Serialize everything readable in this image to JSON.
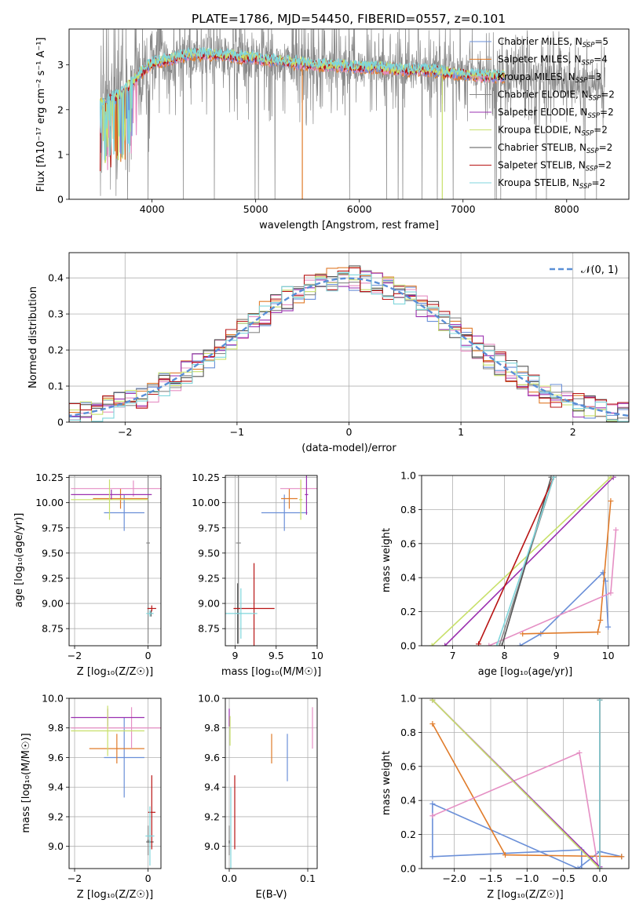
{
  "figure": {
    "title": "PLATE=1786, MJD=54450, FIBERID=0557, z=0.101"
  },
  "colors": {
    "Chabrier MILES": "#6a8fd8",
    "Salpeter MILES": "#e07b2a",
    "Kroupa MILES": "#e58fc4",
    "Chabrier ELODIE": "#888888",
    "Salpeter ELODIE": "#9b30b0",
    "Kroupa ELODIE": "#c8e06a",
    "Chabrier STELIB": "#555555",
    "Salpeter STELIB": "#b81414",
    "Kroupa STELIB": "#7fd6dc",
    "normal": "#5a8fd6",
    "grid": "#b0b0b0"
  },
  "legend_fits": [
    {
      "key": "Chabrier MILES",
      "label": "Chabrier MILES, N",
      "sub": "SSP",
      "tail": "=5"
    },
    {
      "key": "Salpeter MILES",
      "label": "Salpeter MILES, N",
      "sub": "SSP",
      "tail": "=4"
    },
    {
      "key": "Kroupa MILES",
      "label": "Kroupa MILES, N",
      "sub": "SSP",
      "tail": "=3"
    },
    {
      "key": "Chabrier ELODIE",
      "label": "Chabrier ELODIE, N",
      "sub": "SSP",
      "tail": "=2"
    },
    {
      "key": "Salpeter ELODIE",
      "label": "Salpeter ELODIE, N",
      "sub": "SSP",
      "tail": "=2"
    },
    {
      "key": "Kroupa ELODIE",
      "label": "Kroupa ELODIE, N",
      "sub": "SSP",
      "tail": "=2"
    },
    {
      "key": "Chabrier STELIB",
      "label": "Chabrier STELIB, N",
      "sub": "SSP",
      "tail": "=2"
    },
    {
      "key": "Salpeter STELIB",
      "label": "Salpeter STELIB, N",
      "sub": "SSP",
      "tail": "=2"
    },
    {
      "key": "Kroupa STELIB",
      "label": "Kroupa STELIB, N",
      "sub": "SSP",
      "tail": "=2"
    }
  ],
  "chart_data": [
    {
      "id": "spectrum",
      "type": "line",
      "xlabel": "wavelength [Angstrom, rest frame]",
      "ylabel": "Flux [fλ10⁻¹⁷ erg cm⁻² s⁻¹ A⁻¹]",
      "xlim": [
        3200,
        8600
      ],
      "ylim": [
        0,
        3.8
      ],
      "xticks": [
        4000,
        5000,
        6000,
        7000,
        8000
      ],
      "yticks": [
        0,
        1,
        2,
        3
      ],
      "legend_position": "upper right",
      "data_range": {
        "x_start": 3500,
        "x_end": 8370,
        "model_end": 7400
      },
      "continuum": [
        [
          3500,
          2.15
        ],
        [
          3600,
          2.25
        ],
        [
          3700,
          2.35
        ],
        [
          3800,
          2.6
        ],
        [
          3900,
          2.85
        ],
        [
          4000,
          3.05
        ],
        [
          4200,
          3.15
        ],
        [
          4400,
          3.25
        ],
        [
          4600,
          3.25
        ],
        [
          4800,
          3.2
        ],
        [
          5000,
          3.15
        ],
        [
          5200,
          3.1
        ],
        [
          5400,
          3.05
        ],
        [
          5600,
          3.0
        ],
        [
          5800,
          3.0
        ],
        [
          6000,
          2.95
        ],
        [
          6200,
          2.95
        ],
        [
          6400,
          2.9
        ],
        [
          6600,
          2.9
        ],
        [
          6800,
          2.85
        ],
        [
          7000,
          2.8
        ],
        [
          7200,
          2.75
        ],
        [
          7400,
          2.75
        ],
        [
          7600,
          2.7
        ],
        [
          7800,
          2.7
        ],
        [
          8000,
          2.65
        ],
        [
          8200,
          2.6
        ],
        [
          8370,
          2.6
        ]
      ],
      "notes_absorption": [
        {
          "x": 5450,
          "series": "Salpeter MILES"
        },
        {
          "x": 6800,
          "series": "Kroupa ELODIE"
        }
      ]
    },
    {
      "id": "residuals",
      "type": "histogram",
      "xlabel": "(data-model)/error",
      "ylabel": "Normed distribution",
      "xlim": [
        -2.5,
        2.5
      ],
      "ylim": [
        0,
        0.47
      ],
      "xticks": [
        -2,
        -1,
        0,
        1,
        2
      ],
      "yticks": [
        0,
        0.1,
        0.2,
        0.3,
        0.4
      ],
      "grid": true,
      "legend_position": "upper right",
      "normal_label": "𝒩(0, 1)",
      "bin_width": 0.1
    },
    {
      "id": "age_vs_Z",
      "type": "scatter",
      "xlabel": "Z [log₁₀(Z/Z☉)]",
      "ylabel": "age  [log₁₀(age/yr)]",
      "xlim": [
        -2.15,
        0.35
      ],
      "ylim": [
        8.58,
        10.27
      ],
      "xticks": [
        -2,
        0
      ],
      "yticks": [
        8.75,
        9.0,
        9.25,
        9.5,
        9.75,
        10.0,
        10.25
      ],
      "ytick_labels": [
        "8.75",
        "9.00",
        "9.25",
        "9.50",
        "9.75",
        "10.00",
        "10.25"
      ],
      "grid": true,
      "points": [
        {
          "series": "Chabrier MILES",
          "x": -0.65,
          "y": 9.9,
          "xerr": 0.55,
          "yerr": 0.18
        },
        {
          "series": "Salpeter MILES",
          "x": -0.75,
          "y": 10.04,
          "xerr": 0.75,
          "yerr": 0.1
        },
        {
          "series": "Kroupa MILES",
          "x": -0.4,
          "y": 10.14,
          "xerr": 1.7,
          "yerr": 0.08
        },
        {
          "series": "Chabrier ELODIE",
          "x": 0.0,
          "y": 9.6,
          "xerr": 0.05,
          "yerr": 1.0
        },
        {
          "series": "Salpeter ELODIE",
          "x": -1.0,
          "y": 10.08,
          "xerr": 1.1,
          "yerr": 0.05
        },
        {
          "series": "Kroupa ELODIE",
          "x": -1.05,
          "y": 10.03,
          "xerr": 1.05,
          "yerr": 0.2
        },
        {
          "series": "Chabrier STELIB",
          "x": 0.08,
          "y": 8.9,
          "xerr": 0.05,
          "yerr": 0.03
        },
        {
          "series": "Salpeter STELIB",
          "x": 0.1,
          "y": 8.95,
          "xerr": 0.12,
          "yerr": 0.03
        },
        {
          "series": "Kroupa STELIB",
          "x": 0.05,
          "y": 8.9,
          "xerr": 0.1,
          "yerr": 0.03
        }
      ]
    },
    {
      "id": "age_vs_mass",
      "type": "scatter",
      "xlabel": "mass [log₁₀(M/M☉)]",
      "ylabel": "",
      "xlim": [
        8.88,
        10.0
      ],
      "ylim": [
        8.58,
        10.27
      ],
      "xticks": [
        9.0,
        9.5,
        10.0
      ],
      "yticks": [
        8.75,
        9.0,
        9.25,
        9.5,
        9.75,
        10.0,
        10.25
      ],
      "ytick_labels": [
        "8.75",
        "9.00",
        "9.25",
        "9.50",
        "9.75",
        "10.00",
        "10.25"
      ],
      "grid": true,
      "points": [
        {
          "series": "Chabrier MILES",
          "x": 9.6,
          "y": 9.9,
          "xerr": 0.28,
          "yerr": 0.18
        },
        {
          "series": "Salpeter MILES",
          "x": 9.66,
          "y": 10.04,
          "xerr": 0.1,
          "yerr": 0.1
        },
        {
          "series": "Kroupa MILES",
          "x": 9.8,
          "y": 10.14,
          "xerr": 0.25,
          "yerr": 0.08
        },
        {
          "series": "Chabrier ELODIE",
          "x": 9.04,
          "y": 9.6,
          "xerr": 0.03,
          "yerr": 1.0
        },
        {
          "series": "Salpeter ELODIE",
          "x": 9.87,
          "y": 10.08,
          "xerr": 0.02,
          "yerr": 0.2
        },
        {
          "series": "Kroupa ELODIE",
          "x": 9.8,
          "y": 10.03,
          "xerr": 0.02,
          "yerr": 0.2
        },
        {
          "series": "Chabrier STELIB",
          "x": 9.03,
          "y": 8.9,
          "xerr": 0.02,
          "yerr": 0.3
        },
        {
          "series": "Salpeter STELIB",
          "x": 9.23,
          "y": 8.95,
          "xerr": 0.25,
          "yerr": 0.45
        },
        {
          "series": "Kroupa STELIB",
          "x": 9.07,
          "y": 8.9,
          "xerr": 0.2,
          "yerr": 0.25
        }
      ]
    },
    {
      "id": "cumul_mass_weight_vs_age",
      "type": "line",
      "xlabel": "age  [log₁₀(age/yr)]",
      "ylabel": "mass weight",
      "xlim": [
        6.4,
        10.4
      ],
      "ylim": [
        0,
        1
      ],
      "xticks": [
        7,
        8,
        9,
        10
      ],
      "yticks": [
        0,
        0.2,
        0.4,
        0.6,
        0.8,
        1.0
      ],
      "ytick_labels": [
        "0.0",
        "0.2",
        "0.4",
        "0.6",
        "0.8",
        "1.0"
      ],
      "grid": true,
      "series": [
        {
          "key": "Chabrier MILES",
          "x": [
            8.3,
            8.7,
            9.9,
            9.95,
            10.0
          ],
          "y": [
            0.0,
            0.07,
            0.43,
            0.38,
            0.11
          ]
        },
        {
          "key": "Salpeter MILES",
          "x": [
            8.35,
            9.8,
            9.85,
            10.05
          ],
          "y": [
            0.07,
            0.08,
            0.15,
            0.85
          ]
        },
        {
          "key": "Kroupa MILES",
          "x": [
            7.7,
            10.05,
            10.15
          ],
          "y": [
            0.0,
            0.31,
            0.68
          ]
        },
        {
          "key": "Chabrier ELODIE",
          "x": [
            7.9,
            8.95
          ],
          "y": [
            0.0,
            0.99
          ]
        },
        {
          "key": "Salpeter ELODIE",
          "x": [
            6.85,
            10.1
          ],
          "y": [
            0.0,
            0.99
          ]
        },
        {
          "key": "Kroupa ELODIE",
          "x": [
            6.6,
            10.05
          ],
          "y": [
            0.0,
            0.99
          ]
        },
        {
          "key": "Chabrier STELIB",
          "x": [
            7.95,
            8.9
          ],
          "y": [
            0.0,
            0.99
          ]
        },
        {
          "key": "Salpeter STELIB",
          "x": [
            7.5,
            8.95
          ],
          "y": [
            0.01,
            0.99
          ]
        },
        {
          "key": "Kroupa STELIB",
          "x": [
            7.85,
            8.95
          ],
          "y": [
            0.0,
            0.99
          ]
        }
      ]
    },
    {
      "id": "mass_vs_Z",
      "type": "scatter",
      "xlabel": "Z [log₁₀(Z/Z☉)]",
      "ylabel": "mass [log₁₀(M/M☉)]",
      "xlim": [
        -2.15,
        0.35
      ],
      "ylim": [
        8.85,
        10.0
      ],
      "xticks": [
        -2,
        0
      ],
      "yticks": [
        9.0,
        9.2,
        9.4,
        9.6,
        9.8,
        10.0
      ],
      "ytick_labels": [
        "9.0",
        "9.2",
        "9.4",
        "9.6",
        "9.8",
        "10.0"
      ],
      "grid": true,
      "points": [
        {
          "series": "Chabrier MILES",
          "x": -0.65,
          "y": 9.6,
          "xerr": 0.55,
          "yerr": 0.27
        },
        {
          "series": "Salpeter MILES",
          "x": -0.85,
          "y": 9.66,
          "xerr": 0.75,
          "yerr": 0.1
        },
        {
          "series": "Kroupa MILES",
          "x": -0.45,
          "y": 9.8,
          "xerr": 1.65,
          "yerr": 0.14
        },
        {
          "series": "Chabrier ELODIE",
          "x": 0.0,
          "y": 9.04,
          "xerr": 0.03,
          "yerr": 0.1
        },
        {
          "series": "Salpeter ELODIE",
          "x": -1.1,
          "y": 9.87,
          "xerr": 1.0,
          "yerr": 0.06
        },
        {
          "series": "Kroupa ELODIE",
          "x": -1.1,
          "y": 9.78,
          "xerr": 1.0,
          "yerr": 0.17
        },
        {
          "series": "Chabrier STELIB",
          "x": 0.05,
          "y": 9.03,
          "xerr": 0.1,
          "yerr": 0.01
        },
        {
          "series": "Salpeter STELIB",
          "x": 0.1,
          "y": 9.23,
          "xerr": 0.1,
          "yerr": 0.25
        },
        {
          "series": "Kroupa STELIB",
          "x": 0.05,
          "y": 9.07,
          "xerr": 0.12,
          "yerr": 0.2
        }
      ]
    },
    {
      "id": "mass_vs_EBV",
      "type": "scatter",
      "xlabel": "E(B-V)",
      "ylabel": "",
      "xlim": [
        -0.005,
        0.112
      ],
      "ylim": [
        8.85,
        10.0
      ],
      "xticks": [
        0.0,
        0.1
      ],
      "xtick_labels": [
        "0.0",
        "0.1"
      ],
      "yticks": [
        9.0,
        9.2,
        9.4,
        9.6,
        9.8,
        10.0
      ],
      "ytick_labels": [
        "9.0",
        "9.2",
        "9.4",
        "9.6",
        "9.8",
        "10.0"
      ],
      "grid": true,
      "points": [
        {
          "series": "Chabrier MILES",
          "x": 0.074,
          "y": 9.6,
          "xerr": 0,
          "yerr": 0.16
        },
        {
          "series": "Salpeter MILES",
          "x": 0.054,
          "y": 9.66,
          "xerr": 0,
          "yerr": 0.1
        },
        {
          "series": "Kroupa MILES",
          "x": 0.106,
          "y": 9.8,
          "xerr": 0,
          "yerr": 0.14
        },
        {
          "series": "Chabrier ELODIE",
          "x": 0.0,
          "y": 9.04,
          "xerr": 0,
          "yerr": 0.1
        },
        {
          "series": "Salpeter ELODIE",
          "x": 0.0,
          "y": 9.87,
          "xerr": 0,
          "yerr": 0.06
        },
        {
          "series": "Kroupa ELODIE",
          "x": 0.001,
          "y": 9.78,
          "xerr": 0,
          "yerr": 0.1
        },
        {
          "series": "Chabrier STELIB",
          "x": 0.0,
          "y": 9.03,
          "xerr": 0,
          "yerr": 0.01
        },
        {
          "series": "Salpeter STELIB",
          "x": 0.007,
          "y": 9.23,
          "xerr": 0,
          "yerr": 0.25
        },
        {
          "series": "Kroupa STELIB",
          "x": 0.002,
          "y": 9.1,
          "xerr": 0,
          "yerr": 0.3
        }
      ]
    },
    {
      "id": "cumul_mass_weight_vs_Z",
      "type": "line",
      "xlabel": "Z [log₁₀(Z/Z☉)]",
      "ylabel": "mass weight",
      "xlim": [
        -2.45,
        0.4
      ],
      "ylim": [
        0,
        1
      ],
      "xticks": [
        -2.0,
        -1.5,
        -1.0,
        -0.5,
        0.0
      ],
      "xtick_labels": [
        "−2.0",
        "−1.5",
        "−1.0",
        "−0.5",
        "0.0"
      ],
      "yticks": [
        0,
        0.2,
        0.4,
        0.6,
        0.8,
        1.0
      ],
      "ytick_labels": [
        "0.0",
        "0.2",
        "0.4",
        "0.6",
        "0.8",
        "1.0"
      ],
      "grid": true,
      "series": [
        {
          "key": "Chabrier MILES",
          "x": [
            -0.25,
            -0.25,
            -2.3,
            -2.3,
            -0.3,
            0.0,
            0.3
          ],
          "y": [
            0.0,
            0.11,
            0.07,
            0.38,
            0.0,
            0.1,
            0.07
          ]
        },
        {
          "key": "Salpeter MILES",
          "x": [
            0.3,
            -1.3,
            -2.3
          ],
          "y": [
            0.07,
            0.08,
            0.85
          ]
        },
        {
          "key": "Kroupa MILES",
          "x": [
            -0.02,
            -0.28,
            -2.3
          ],
          "y": [
            0.0,
            0.68,
            0.31
          ]
        },
        {
          "key": "Chabrier ELODIE",
          "x": [
            0.0,
            -2.3
          ],
          "y": [
            0.0,
            0.99
          ]
        },
        {
          "key": "Salpeter ELODIE",
          "x": [
            0.0,
            -2.3
          ],
          "y": [
            0.01,
            0.99
          ]
        },
        {
          "key": "Kroupa ELODIE",
          "x": [
            0.0,
            -2.3
          ],
          "y": [
            0.0,
            0.99
          ]
        },
        {
          "key": "Chabrier STELIB",
          "x": [
            0.0,
            0.0
          ],
          "y": [
            0.0,
            0.99
          ]
        },
        {
          "key": "Salpeter STELIB",
          "x": [
            0.0,
            0.0
          ],
          "y": [
            0.0,
            0.99
          ]
        },
        {
          "key": "Kroupa STELIB",
          "x": [
            0.0,
            0.0
          ],
          "y": [
            0.0,
            0.99
          ]
        }
      ]
    }
  ]
}
